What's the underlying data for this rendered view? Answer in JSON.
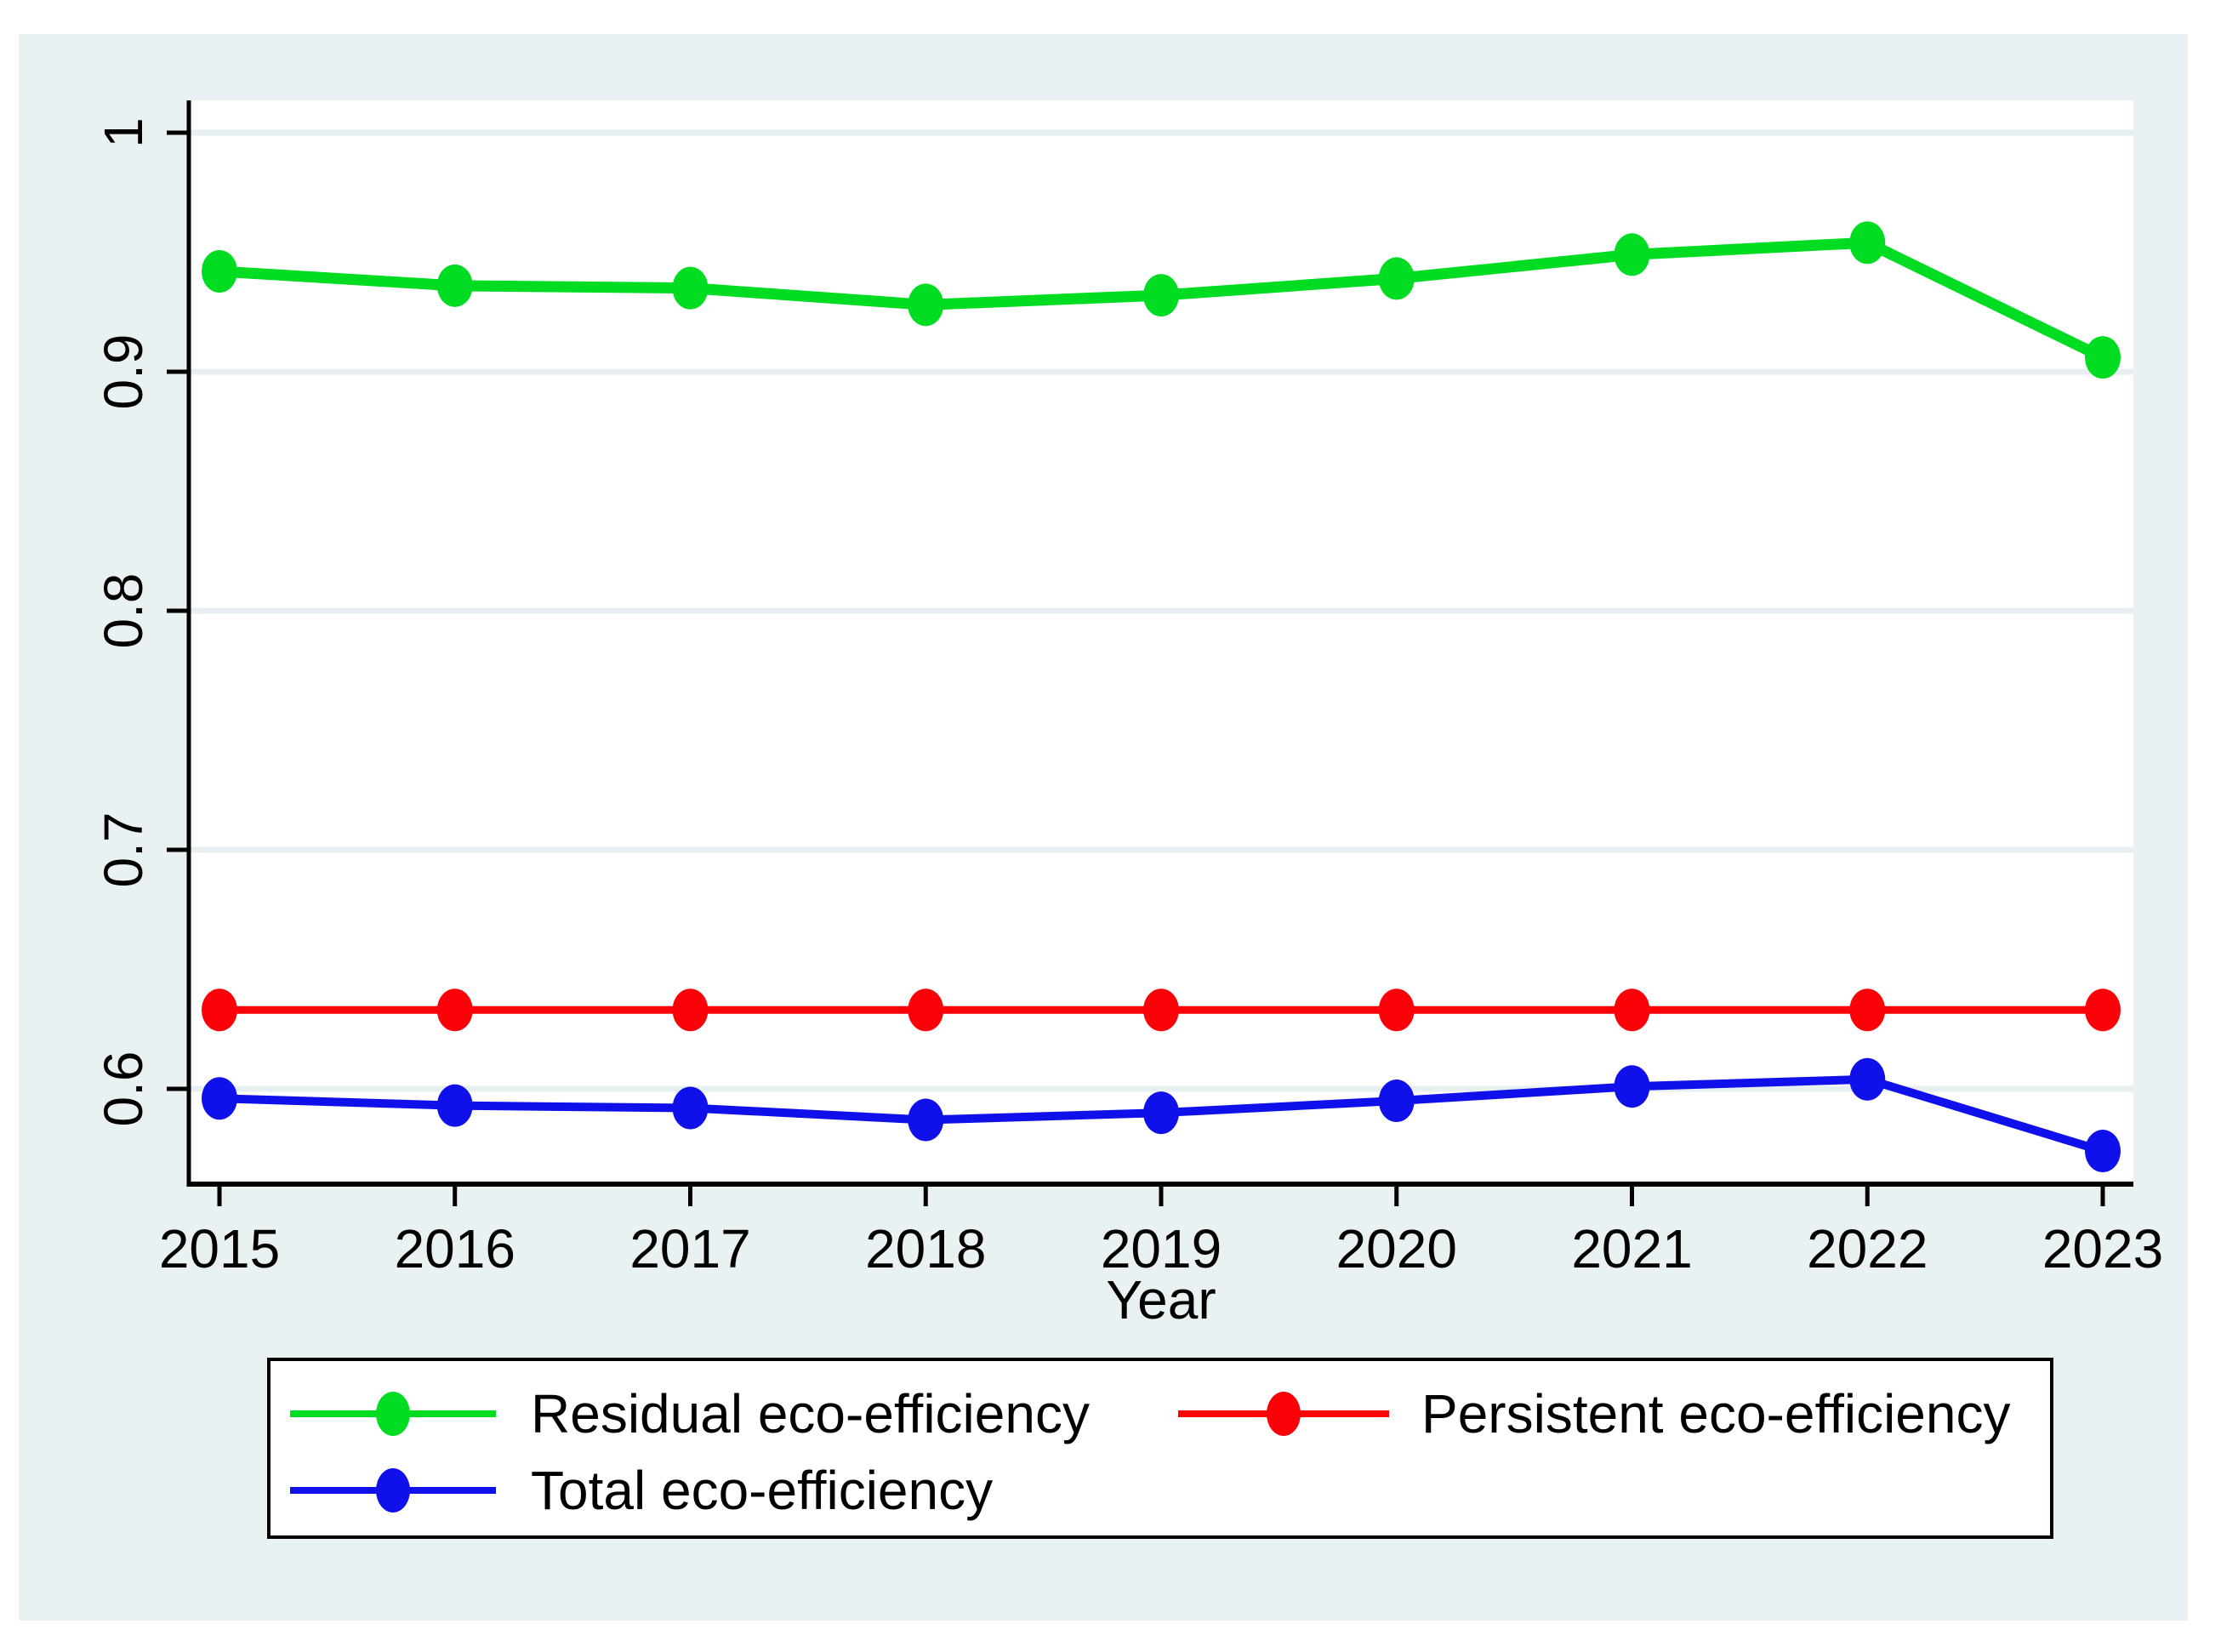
{
  "chart_data": {
    "type": "line",
    "title": "",
    "xlabel": "Year",
    "ylabel": "",
    "x": [
      2015,
      2016,
      2017,
      2018,
      2019,
      2020,
      2021,
      2022,
      2023
    ],
    "x_tick_labels": [
      "2015",
      "2016",
      "2017",
      "2018",
      "2019",
      "2020",
      "2021",
      "2022",
      "2023"
    ],
    "yticks": [
      1,
      0.9,
      0.8,
      0.7,
      0.6
    ],
    "ytick_labels": [
      "1",
      "0.9",
      "0.8",
      "0.7",
      "0.6"
    ],
    "ylim": [
      0.557,
      1.013
    ],
    "grid": "horizontal-only",
    "legend_position": "bottom-box",
    "series": [
      {
        "name": "Residual eco-efficiency",
        "color": "#00DC22",
        "marker": "circle",
        "values": [
          0.942,
          0.936,
          0.935,
          0.928,
          0.932,
          0.939,
          0.949,
          0.954,
          0.906
        ]
      },
      {
        "name": "Persistent eco-efficiency",
        "color": "#FB0208",
        "marker": "circle",
        "values": [
          0.633,
          0.633,
          0.633,
          0.633,
          0.633,
          0.633,
          0.633,
          0.633,
          0.633
        ]
      },
      {
        "name": "Total eco-efficiency",
        "color": "#1010EB",
        "marker": "circle",
        "values": [
          0.596,
          0.593,
          0.592,
          0.587,
          0.59,
          0.595,
          0.601,
          0.604,
          0.574
        ]
      }
    ]
  },
  "legend": {
    "rows": [
      [
        "Residual eco-efficiency",
        "Persistent eco-efficiency"
      ],
      [
        "Total eco-efficiency"
      ]
    ]
  },
  "colors": {
    "figure_background": "#E9F1F2",
    "plot_background": "#FFFFFF",
    "gridline": "#E7EFF2",
    "axis": "#000000",
    "text": "#000000",
    "legend_background": "#FFFFFF",
    "legend_border": "#000000",
    "page_background": "#FFFFFF"
  }
}
